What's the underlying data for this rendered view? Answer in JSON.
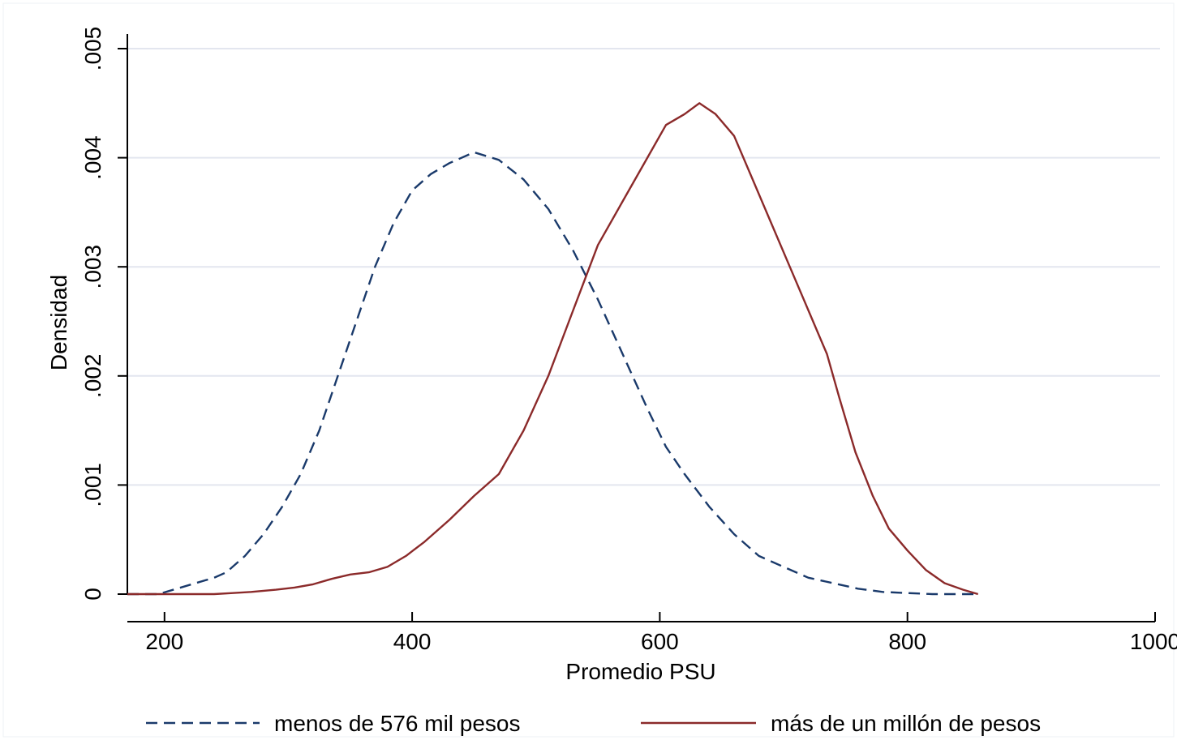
{
  "chart_data": {
    "type": "line",
    "title": "",
    "xlabel": "Promedio PSU",
    "ylabel": "Densidad",
    "xlim": [
      170,
      1000
    ],
    "ylim": [
      0,
      0.005
    ],
    "x_ticks": [
      200,
      400,
      600,
      800,
      1000
    ],
    "x_tick_labels": [
      "200",
      "400",
      "600",
      "800",
      "1000"
    ],
    "y_ticks": [
      0,
      0.001,
      0.002,
      0.003,
      0.004,
      0.005
    ],
    "y_tick_labels": [
      "0",
      ".001",
      ".002",
      ".003",
      ".004",
      ".005"
    ],
    "grid": true,
    "legend_position": "bottom",
    "series": [
      {
        "name": "menos de 576 mil pesos",
        "color": "#1a3a6b",
        "style": "dashed",
        "x": [
          170,
          195,
          210,
          225,
          240,
          250,
          265,
          280,
          295,
          310,
          325,
          340,
          355,
          370,
          385,
          400,
          415,
          430,
          450,
          470,
          490,
          510,
          530,
          550,
          570,
          590,
          605,
          620,
          640,
          660,
          680,
          700,
          720,
          740,
          760,
          780,
          800,
          820,
          840,
          857
        ],
        "y": [
          0,
          0,
          5e-05,
          0.0001,
          0.00015,
          0.0002,
          0.00035,
          0.00055,
          0.0008,
          0.0011,
          0.0015,
          0.002,
          0.0025,
          0.003,
          0.0034,
          0.0037,
          0.00385,
          0.00395,
          0.00405,
          0.00398,
          0.0038,
          0.00353,
          0.00315,
          0.0027,
          0.0022,
          0.0017,
          0.00135,
          0.0011,
          0.0008,
          0.00055,
          0.00035,
          0.00025,
          0.00015,
          0.0001,
          5e-05,
          2e-05,
          1e-05,
          0,
          0,
          0
        ]
      },
      {
        "name": "más de un millón de pesos",
        "color": "#8b2a2a",
        "style": "solid",
        "x": [
          170,
          210,
          240,
          255,
          270,
          290,
          305,
          320,
          335,
          350,
          365,
          380,
          395,
          410,
          430,
          450,
          470,
          490,
          510,
          530,
          550,
          570,
          590,
          605,
          620,
          632,
          645,
          660,
          675,
          690,
          705,
          720,
          735,
          745,
          758,
          772,
          785,
          800,
          815,
          830,
          845,
          857
        ],
        "y": [
          0,
          0,
          0,
          1e-05,
          2e-05,
          4e-05,
          6e-05,
          9e-05,
          0.00014,
          0.00018,
          0.0002,
          0.00025,
          0.00035,
          0.00048,
          0.00068,
          0.0009,
          0.0011,
          0.0015,
          0.002,
          0.0026,
          0.0032,
          0.0036,
          0.004,
          0.0043,
          0.0044,
          0.0045,
          0.0044,
          0.0042,
          0.0038,
          0.0034,
          0.003,
          0.0026,
          0.0022,
          0.0018,
          0.0013,
          0.0009,
          0.0006,
          0.0004,
          0.00022,
          0.0001,
          4e-05,
          0
        ]
      }
    ]
  }
}
